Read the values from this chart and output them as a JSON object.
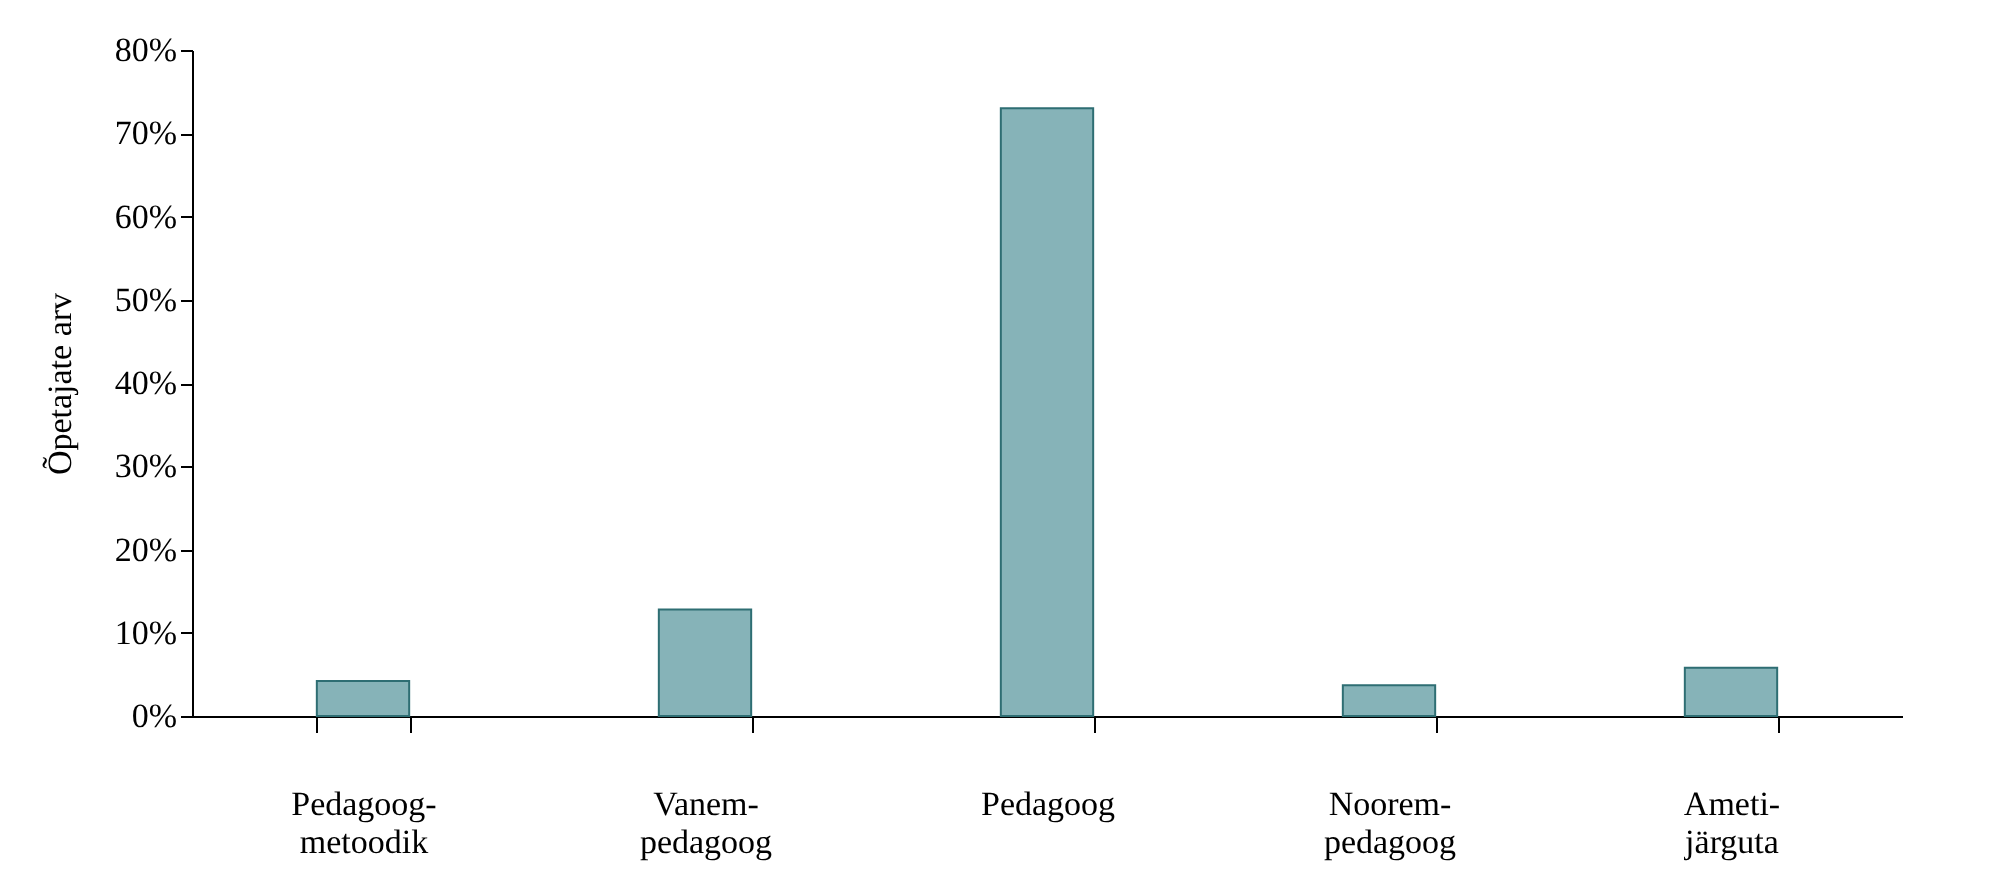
{
  "chart_data": {
    "type": "bar",
    "ylabel": "Õpetajate arv",
    "categories": [
      "Pedagoog-metoodik",
      "Vanem-pedagoog",
      "Pedagoog",
      "Noorem-pedagoog",
      "Ameti-järguta"
    ],
    "values": [
      4.2,
      12.8,
      73,
      3.7,
      5.8
    ],
    "color": "#86b3b8",
    "ylim": [
      0,
      80
    ],
    "yticks": [
      {
        "value": 0,
        "label": "0%"
      },
      {
        "value": 10,
        "label": "10%"
      },
      {
        "value": 20,
        "label": "20%"
      },
      {
        "value": 30,
        "label": "30%"
      },
      {
        "value": 40,
        "label": "40%"
      },
      {
        "value": 50,
        "label": "50%"
      },
      {
        "value": 60,
        "label": "60%"
      },
      {
        "value": 70,
        "label": "70%"
      },
      {
        "value": 80,
        "label": "80%"
      }
    ],
    "grid": false
  }
}
